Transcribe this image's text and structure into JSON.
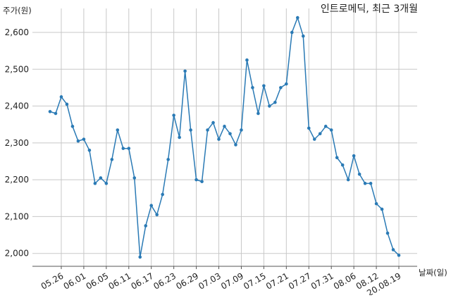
{
  "chart_data": {
    "type": "line",
    "title": "인트로메딕, 최근 3개월",
    "ylabel": "주가(원)",
    "xlabel": "날짜(일)",
    "ylim": [
      1965,
      2665
    ],
    "yticks": [
      2000,
      2100,
      2200,
      2300,
      2400,
      2500,
      2600
    ],
    "ytick_labels": [
      "2,000",
      "2,100",
      "2,200",
      "2,300",
      "2,400",
      "2,500",
      "2,600"
    ],
    "grid": true,
    "line_color": "#2a7ab5",
    "x": [
      "05.22",
      "05.25",
      "05.26",
      "05.27",
      "05.28",
      "05.29",
      "06.01",
      "06.02",
      "06.03",
      "06.04",
      "06.05",
      "06.08",
      "06.09",
      "06.10",
      "06.11",
      "06.12",
      "06.15",
      "06.16",
      "06.17",
      "06.18",
      "06.19",
      "06.22",
      "06.23",
      "06.24",
      "06.25",
      "06.26",
      "06.29",
      "06.30",
      "07.01",
      "07.02",
      "07.03",
      "07.06",
      "07.07",
      "07.08",
      "07.09",
      "07.10",
      "07.13",
      "07.14",
      "07.15",
      "07.16",
      "07.17",
      "07.20",
      "07.21",
      "07.22",
      "07.23",
      "07.24",
      "07.27",
      "07.28",
      "07.29",
      "07.30",
      "07.31",
      "08.03",
      "08.04",
      "08.05",
      "08.06",
      "08.07",
      "08.10",
      "08.11",
      "08.12",
      "08.13",
      "08.14",
      "08.18",
      "20.08.19"
    ],
    "xtick_labels": [
      "05.26",
      "06.01",
      "06.05",
      "06.11",
      "06.17",
      "06.23",
      "06.29",
      "07.03",
      "07.09",
      "07.15",
      "07.21",
      "07.27",
      "07.31",
      "08.06",
      "08.12",
      "20.08.19"
    ],
    "series": [
      {
        "values": [
          2385,
          2380,
          2425,
          2405,
          2345,
          2305,
          2310,
          2280,
          2190,
          2205,
          2190,
          2255,
          2335,
          2285,
          2285,
          2205,
          1990,
          2075,
          2130,
          2105,
          2160,
          2255,
          2375,
          2315,
          2495,
          2335,
          2200,
          2195,
          2335,
          2355,
          2310,
          2345,
          2325,
          2295,
          2335,
          2525,
          2450,
          2380,
          2455,
          2400,
          2410,
          2450,
          2460,
          2600,
          2640,
          2590,
          2340,
          2310,
          2325,
          2345,
          2335,
          2260,
          2240,
          2200,
          2265,
          2215,
          2190,
          2190,
          2135,
          2120,
          2055,
          2010,
          1995
        ]
      }
    ]
  }
}
